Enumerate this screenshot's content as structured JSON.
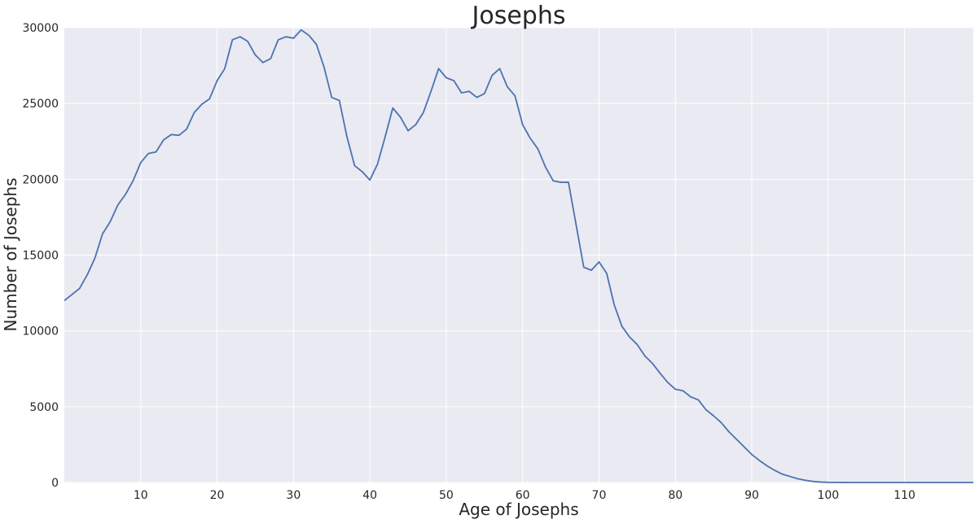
{
  "chart_data": {
    "type": "line",
    "title": "Josephs",
    "xlabel": "Age of Josephs",
    "ylabel": "Number of Josephs",
    "xlim": [
      0,
      119
    ],
    "ylim": [
      0,
      30000
    ],
    "grid": true,
    "xticks": [
      10,
      20,
      30,
      40,
      50,
      60,
      70,
      80,
      90,
      100,
      110
    ],
    "yticks": [
      0,
      5000,
      10000,
      15000,
      20000,
      25000,
      30000
    ],
    "colors": {
      "background": "#eaeaf2",
      "grid": "#ffffff",
      "line": "#4c72b0"
    },
    "series": [
      {
        "x": [
          0,
          1,
          2,
          3,
          4,
          5,
          6,
          7,
          8,
          9,
          10,
          11,
          12,
          13,
          14,
          15,
          16,
          17,
          18,
          19,
          20,
          21,
          22,
          23,
          24,
          25,
          26,
          27,
          28,
          29,
          30,
          31,
          32,
          33,
          34,
          35,
          36,
          37,
          38,
          39,
          40,
          41,
          42,
          43,
          44,
          45,
          46,
          47,
          48,
          49,
          50,
          51,
          52,
          53,
          54,
          55,
          56,
          57,
          58,
          59,
          60,
          61,
          62,
          63,
          64,
          65,
          66,
          67,
          68,
          69,
          70,
          71,
          72,
          73,
          74,
          75,
          76,
          77,
          78,
          79,
          80,
          81,
          82,
          83,
          84,
          85,
          86,
          87,
          88,
          89,
          90,
          91,
          92,
          93,
          94,
          95,
          96,
          97,
          98,
          99,
          100,
          101,
          102,
          103,
          104,
          105,
          106,
          107,
          108,
          109,
          110,
          111,
          112,
          113,
          114,
          115,
          116,
          117,
          118,
          119
        ],
        "values": [
          12000,
          12400,
          12800,
          13700,
          14800,
          16400,
          17200,
          18300,
          19000,
          19900,
          21100,
          21700,
          21800,
          22600,
          22950,
          22900,
          23300,
          24400,
          24950,
          25300,
          26500,
          27300,
          29200,
          29400,
          29100,
          28200,
          27700,
          27950,
          29200,
          29400,
          29300,
          29850,
          29500,
          28900,
          27400,
          25400,
          25200,
          22800,
          20900,
          20500,
          19950,
          21000,
          22800,
          24700,
          24100,
          23200,
          23600,
          24400,
          25800,
          27300,
          26700,
          26500,
          25700,
          25800,
          25400,
          25650,
          26850,
          27300,
          26100,
          25500,
          23600,
          22700,
          22000,
          20800,
          19900,
          19800,
          19800,
          17000,
          14200,
          14000,
          14550,
          13800,
          11700,
          10300,
          9600,
          9100,
          8350,
          7850,
          7200,
          6600,
          6150,
          6050,
          5650,
          5450,
          4800,
          4400,
          3950,
          3350,
          2850,
          2350,
          1850,
          1450,
          1100,
          800,
          550,
          400,
          250,
          150,
          70,
          30,
          10,
          5,
          2,
          1,
          0,
          0,
          0,
          0,
          0,
          0,
          0,
          0,
          0,
          0,
          0,
          0,
          0,
          0,
          0,
          0
        ]
      }
    ]
  }
}
